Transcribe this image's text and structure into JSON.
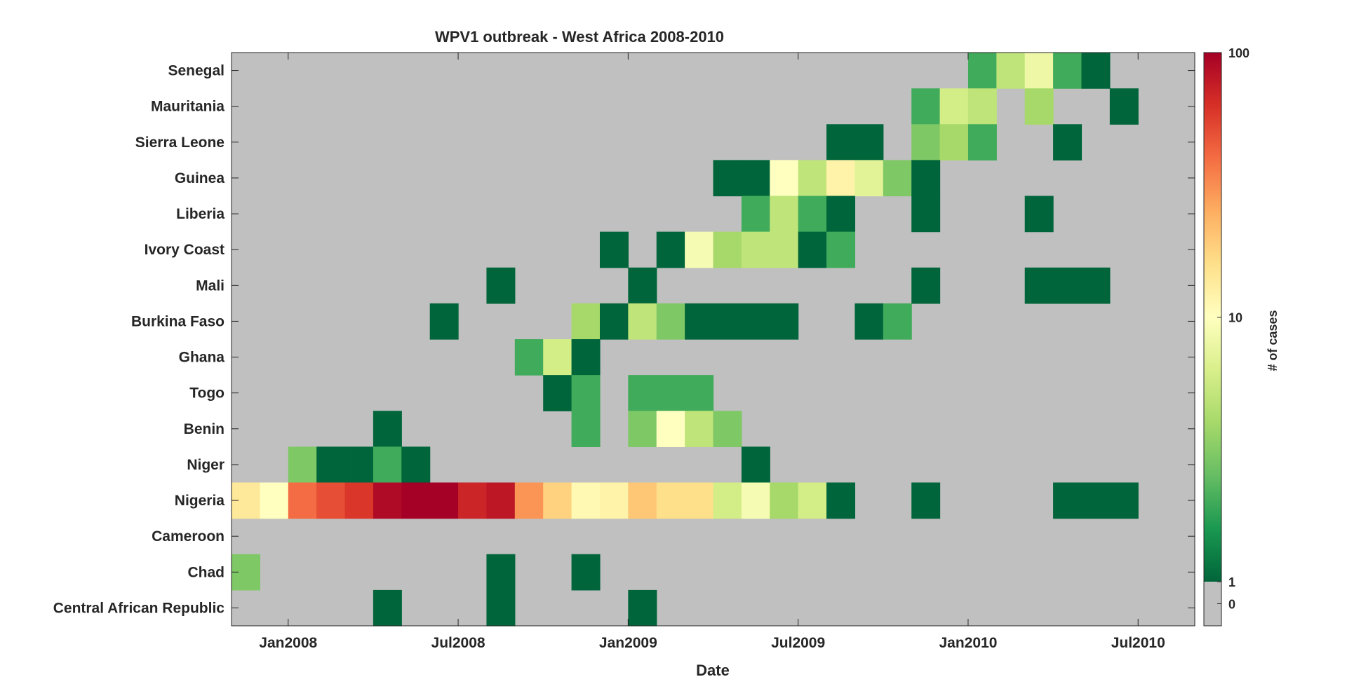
{
  "chart_data": {
    "type": "heatmap",
    "title": "WPV1 outbreak - West Africa 2008-2010",
    "xlabel": "Date",
    "colorbar_label": "# of cases",
    "colorbar_ticks": [
      "0",
      "1",
      "10",
      "100"
    ],
    "color_scale": "log",
    "zero_color": "#c0c0c0",
    "colormap": [
      "#00653a",
      "#1a9850",
      "#66bd63",
      "#a6d96a",
      "#d9ef8b",
      "#ffffbf",
      "#fee08b",
      "#fdae61",
      "#f46d43",
      "#d73027",
      "#a50026"
    ],
    "months": [
      "Nov2007",
      "Dec2007",
      "Jan2008",
      "Feb2008",
      "Mar2008",
      "Apr2008",
      "May2008",
      "Jun2008",
      "Jul2008",
      "Aug2008",
      "Sep2008",
      "Oct2008",
      "Nov2008",
      "Dec2008",
      "Jan2009",
      "Feb2009",
      "Mar2009",
      "Apr2009",
      "May2009",
      "Jun2009",
      "Jul2009",
      "Aug2009",
      "Sep2009",
      "Oct2009",
      "Nov2009",
      "Dec2009",
      "Jan2010",
      "Feb2010",
      "Mar2010",
      "Apr2010",
      "May2010",
      "Jun2010",
      "Jul2010",
      "Aug2010"
    ],
    "x_ticks": [
      {
        "label": "Jan2008",
        "month_index": 2
      },
      {
        "label": "Jul2008",
        "month_index": 8
      },
      {
        "label": "Jan2009",
        "month_index": 14
      },
      {
        "label": "Jul2009",
        "month_index": 20
      },
      {
        "label": "Jan2010",
        "month_index": 26
      },
      {
        "label": "Jul2010",
        "month_index": 32
      }
    ],
    "countries": [
      "Senegal",
      "Mauritania",
      "Sierra Leone",
      "Guinea",
      "Liberia",
      "Ivory Coast",
      "Mali",
      "Burkina Faso",
      "Ghana",
      "Togo",
      "Benin",
      "Niger",
      "Nigeria",
      "Cameroon",
      "Chad",
      "Central African Republic"
    ],
    "cells": [
      {
        "country": "Senegal",
        "values": [
          0,
          0,
          0,
          0,
          0,
          0,
          0,
          0,
          0,
          0,
          0,
          0,
          0,
          0,
          0,
          0,
          0,
          0,
          0,
          0,
          0,
          0,
          0,
          0,
          0,
          0,
          2,
          5,
          8,
          2,
          1,
          0,
          0,
          0
        ]
      },
      {
        "country": "Mauritania",
        "values": [
          0,
          0,
          0,
          0,
          0,
          0,
          0,
          0,
          0,
          0,
          0,
          0,
          0,
          0,
          0,
          0,
          0,
          0,
          0,
          0,
          0,
          0,
          0,
          0,
          2,
          6,
          5,
          0,
          4,
          0,
          0,
          1,
          0,
          0
        ]
      },
      {
        "country": "Sierra Leone",
        "values": [
          0,
          0,
          0,
          0,
          0,
          0,
          0,
          0,
          0,
          0,
          0,
          0,
          0,
          0,
          0,
          0,
          0,
          0,
          0,
          0,
          0,
          1,
          1,
          0,
          3,
          4,
          2,
          0,
          0,
          1,
          0,
          0,
          0,
          0
        ]
      },
      {
        "country": "Guinea",
        "values": [
          0,
          0,
          0,
          0,
          0,
          0,
          0,
          0,
          0,
          0,
          0,
          0,
          0,
          0,
          0,
          0,
          0,
          1,
          1,
          10,
          5,
          12,
          7,
          3,
          1,
          0,
          0,
          0,
          0,
          0,
          0,
          0,
          0,
          0
        ]
      },
      {
        "country": "Liberia",
        "values": [
          0,
          0,
          0,
          0,
          0,
          0,
          0,
          0,
          0,
          0,
          0,
          0,
          0,
          0,
          0,
          0,
          0,
          0,
          2,
          5,
          2,
          1,
          0,
          0,
          1,
          0,
          0,
          0,
          1,
          0,
          0,
          0,
          0,
          0
        ]
      },
      {
        "country": "Ivory Coast",
        "values": [
          0,
          0,
          0,
          0,
          0,
          0,
          0,
          0,
          0,
          0,
          0,
          0,
          0,
          1,
          0,
          1,
          9,
          4,
          5,
          5,
          1,
          2,
          0,
          0,
          0,
          0,
          0,
          0,
          0,
          0,
          0,
          0,
          0,
          0
        ]
      },
      {
        "country": "Mali",
        "values": [
          0,
          0,
          0,
          0,
          0,
          0,
          0,
          0,
          0,
          1,
          0,
          0,
          0,
          0,
          1,
          0,
          0,
          0,
          0,
          0,
          0,
          0,
          0,
          0,
          1,
          0,
          0,
          0,
          1,
          1,
          1,
          0,
          0,
          0
        ]
      },
      {
        "country": "Burkina Faso",
        "values": [
          0,
          0,
          0,
          0,
          0,
          0,
          0,
          1,
          0,
          0,
          0,
          0,
          4,
          1,
          5,
          3,
          1,
          1,
          1,
          1,
          0,
          0,
          1,
          2,
          0,
          0,
          0,
          0,
          0,
          0,
          0,
          0,
          0,
          0
        ]
      },
      {
        "country": "Ghana",
        "values": [
          0,
          0,
          0,
          0,
          0,
          0,
          0,
          0,
          0,
          0,
          2,
          6,
          1,
          0,
          0,
          0,
          0,
          0,
          0,
          0,
          0,
          0,
          0,
          0,
          0,
          0,
          0,
          0,
          0,
          0,
          0,
          0,
          0,
          0
        ]
      },
      {
        "country": "Togo",
        "values": [
          0,
          0,
          0,
          0,
          0,
          0,
          0,
          0,
          0,
          0,
          0,
          1,
          2,
          0,
          2,
          2,
          2,
          0,
          0,
          0,
          0,
          0,
          0,
          0,
          0,
          0,
          0,
          0,
          0,
          0,
          0,
          0,
          0,
          0
        ]
      },
      {
        "country": "Benin",
        "values": [
          0,
          0,
          0,
          0,
          0,
          1,
          0,
          0,
          0,
          0,
          0,
          0,
          2,
          0,
          3,
          10,
          5,
          3,
          0,
          0,
          0,
          0,
          0,
          0,
          0,
          0,
          0,
          0,
          0,
          0,
          0,
          0,
          0,
          0
        ]
      },
      {
        "country": "Niger",
        "values": [
          0,
          0,
          3,
          1,
          1,
          2,
          1,
          0,
          0,
          0,
          0,
          0,
          0,
          0,
          0,
          0,
          0,
          0,
          1,
          0,
          0,
          0,
          0,
          0,
          0,
          0,
          0,
          0,
          0,
          0,
          0,
          0,
          0,
          0
        ]
      },
      {
        "country": "Nigeria",
        "values": [
          14,
          10,
          40,
          50,
          60,
          90,
          100,
          100,
          70,
          80,
          30,
          18,
          11,
          12,
          20,
          16,
          16,
          6,
          9,
          4,
          6,
          1,
          0,
          0,
          1,
          0,
          0,
          0,
          0,
          1,
          1,
          1,
          0,
          0
        ]
      },
      {
        "country": "Cameroon",
        "values": [
          0,
          0,
          0,
          0,
          0,
          0,
          0,
          0,
          0,
          0,
          0,
          0,
          0,
          0,
          0,
          0,
          0,
          0,
          0,
          0,
          0,
          0,
          0,
          0,
          0,
          0,
          0,
          0,
          0,
          0,
          0,
          0,
          0,
          0
        ]
      },
      {
        "country": "Chad",
        "values": [
          3,
          0,
          0,
          0,
          0,
          0,
          0,
          0,
          0,
          1,
          0,
          0,
          1,
          0,
          0,
          0,
          0,
          0,
          0,
          0,
          0,
          0,
          0,
          0,
          0,
          0,
          0,
          0,
          0,
          0,
          0,
          0,
          0,
          0
        ]
      },
      {
        "country": "Central African Republic",
        "values": [
          0,
          0,
          0,
          0,
          0,
          1,
          0,
          0,
          0,
          1,
          0,
          0,
          0,
          0,
          1,
          0,
          0,
          0,
          0,
          0,
          0,
          0,
          0,
          0,
          0,
          0,
          0,
          0,
          0,
          0,
          0,
          0,
          0,
          0
        ]
      }
    ]
  }
}
